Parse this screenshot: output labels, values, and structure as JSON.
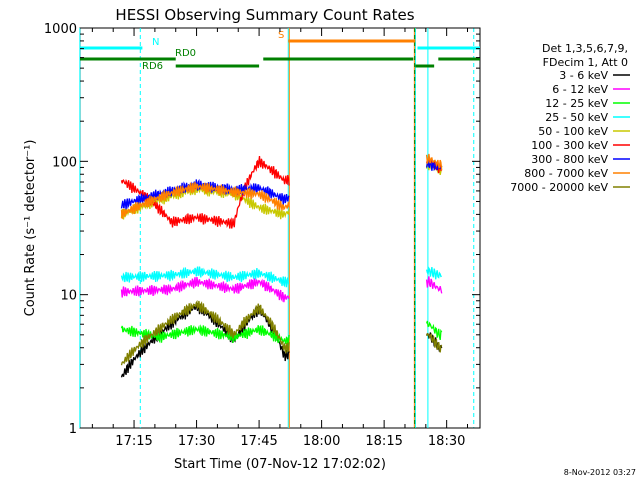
{
  "chart_data": {
    "type": "line",
    "title": "HESSI Observing Summary Count Rates",
    "xlabel": "Start Time (07-Nov-12 17:02:02)",
    "ylabel": "Count Rate (s⁻¹ detector⁻¹)",
    "y_scale": "log",
    "ylim": [
      1,
      1000
    ],
    "xlim": [
      "17:02:02",
      "18:38:00"
    ],
    "x_ticks": [
      "17:15",
      "17:30",
      "17:45",
      "18:00",
      "18:15",
      "18:30"
    ],
    "y_ticks": [
      "1",
      "10",
      "100",
      "1000"
    ],
    "grid": false,
    "legend_position": "right",
    "legend_header": [
      "Det 1,3,5,6,7,9,",
      "FDecim 1, Att 0"
    ],
    "footer_date": "8-Nov-2012 03:27",
    "flags": [
      {
        "label": "N",
        "color": "#00ffff",
        "segments": [
          [
            "17:02:02",
            "17:17:00"
          ],
          [
            "18:23:00",
            "18:38:00"
          ]
        ]
      },
      {
        "label": "S",
        "color": "#ff8000",
        "segments": [
          [
            "17:52:00",
            "18:22:30"
          ]
        ]
      },
      {
        "label": "RD0",
        "color": "#008000",
        "segments": [
          [
            "17:02:02",
            "17:25:00"
          ],
          [
            "17:46:00",
            "18:22:00"
          ],
          [
            "18:28:00",
            "18:38:00"
          ]
        ]
      },
      {
        "label": "RD6",
        "color": "#008000",
        "segments": [
          [
            "17:25:00",
            "17:45:00"
          ],
          [
            "18:22:30",
            "18:27:00"
          ]
        ]
      }
    ],
    "vertical_markers": [
      {
        "time": "17:02:00",
        "color": "#00ffff",
        "style": "solid"
      },
      {
        "time": "17:16:30",
        "color": "#00ffff",
        "style": "dashed"
      },
      {
        "time": "17:52:00",
        "color": "#00ffff",
        "style": "solid"
      },
      {
        "time": "18:22:30",
        "color": "#00ffff",
        "style": "solid"
      },
      {
        "time": "18:25:30",
        "color": "#00ffff",
        "style": "solid"
      },
      {
        "time": "18:36:30",
        "color": "#00ffff",
        "style": "dashed"
      },
      {
        "time": "17:52:15",
        "color": "#ff8000",
        "style": "solid"
      },
      {
        "time": "18:22:15",
        "color": "#ff8000",
        "style": "solid"
      },
      {
        "time": "18:22:20",
        "color": "#008000",
        "style": "dashed"
      }
    ],
    "series": [
      {
        "name": "3 - 6 keV",
        "color": "#000000",
        "profile": [
          [
            17.2,
            2.4
          ],
          [
            17.35,
            5
          ],
          [
            17.5,
            8.2
          ],
          [
            17.65,
            4.5
          ],
          [
            17.75,
            7.8
          ],
          [
            17.85,
            3.5
          ],
          [
            18.43,
            5
          ],
          [
            18.47,
            4
          ]
        ]
      },
      {
        "name": "6 - 12 keV",
        "color": "#ff00ff",
        "profile": [
          [
            17.2,
            10.5
          ],
          [
            17.4,
            11
          ],
          [
            17.5,
            12.5
          ],
          [
            17.65,
            11
          ],
          [
            17.75,
            12.5
          ],
          [
            17.85,
            9.5
          ],
          [
            18.43,
            12.5
          ],
          [
            18.47,
            11
          ]
        ]
      },
      {
        "name": "12 - 25 keV",
        "color": "#00ff00",
        "profile": [
          [
            17.2,
            5.5
          ],
          [
            17.35,
            4.8
          ],
          [
            17.5,
            5.5
          ],
          [
            17.65,
            4.8
          ],
          [
            17.75,
            5.5
          ],
          [
            17.85,
            4.5
          ],
          [
            18.43,
            6
          ],
          [
            18.47,
            5
          ]
        ]
      },
      {
        "name": "25 - 50 keV",
        "color": "#00ffff",
        "profile": [
          [
            17.2,
            13.5
          ],
          [
            17.4,
            14
          ],
          [
            17.5,
            15
          ],
          [
            17.65,
            13.5
          ],
          [
            17.75,
            14.5
          ],
          [
            17.85,
            12.5
          ],
          [
            18.43,
            15
          ],
          [
            18.47,
            14
          ]
        ]
      },
      {
        "name": "50 - 100 keV",
        "color": "#c8c800",
        "profile": [
          [
            17.2,
            40
          ],
          [
            17.4,
            55
          ],
          [
            17.5,
            62
          ],
          [
            17.65,
            57
          ],
          [
            17.75,
            45
          ],
          [
            17.85,
            40
          ],
          [
            18.43,
            95
          ],
          [
            18.47,
            85
          ]
        ]
      },
      {
        "name": "100 - 300 keV",
        "color": "#ff0000",
        "profile": [
          [
            17.2,
            72
          ],
          [
            17.4,
            35
          ],
          [
            17.5,
            38
          ],
          [
            17.65,
            34
          ],
          [
            17.75,
            100
          ],
          [
            17.85,
            72
          ],
          [
            18.43,
            100
          ],
          [
            18.47,
            90
          ]
        ]
      },
      {
        "name": "300 - 800 keV",
        "color": "#0000ff",
        "profile": [
          [
            17.2,
            47
          ],
          [
            17.4,
            60
          ],
          [
            17.5,
            67
          ],
          [
            17.65,
            61
          ],
          [
            17.75,
            63
          ],
          [
            17.85,
            52
          ],
          [
            18.43,
            96
          ],
          [
            18.47,
            90
          ]
        ]
      },
      {
        "name": "800 - 7000 keV",
        "color": "#ff8000",
        "profile": [
          [
            17.2,
            40
          ],
          [
            17.4,
            58
          ],
          [
            17.5,
            65
          ],
          [
            17.65,
            59
          ],
          [
            17.75,
            57
          ],
          [
            17.85,
            45
          ],
          [
            18.43,
            105
          ],
          [
            18.47,
            95
          ]
        ]
      },
      {
        "name": "7000 - 20000 keV",
        "color": "#808000",
        "profile": [
          [
            17.2,
            3
          ],
          [
            17.35,
            5.5
          ],
          [
            17.5,
            8.5
          ],
          [
            17.65,
            5
          ],
          [
            17.75,
            8
          ],
          [
            17.85,
            4
          ],
          [
            18.43,
            5
          ],
          [
            18.47,
            4
          ]
        ]
      }
    ]
  }
}
